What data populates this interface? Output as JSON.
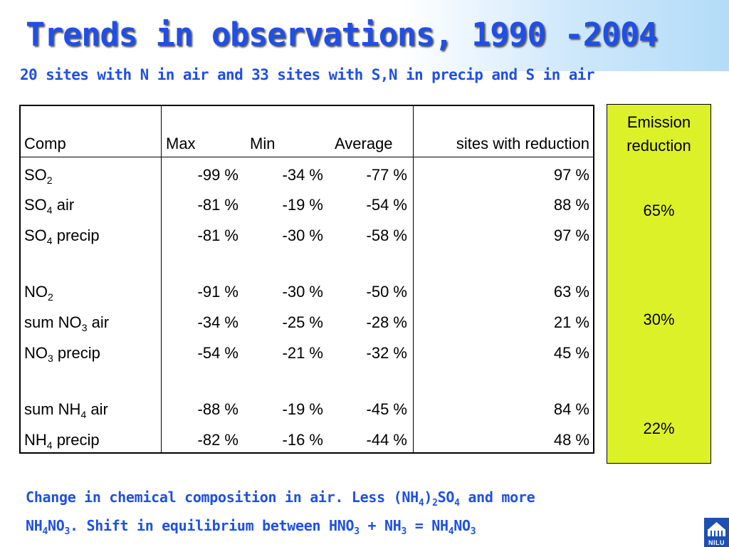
{
  "title": "Trends in observations, 1990 -2004",
  "subtitle": "20 sites with N in air and 33 sites with S,N in precip and S in air",
  "table": {
    "headers": {
      "comp": "Comp",
      "max": "Max",
      "min": "Min",
      "average": "Average",
      "sites": "sites with reduction"
    },
    "rows": [
      {
        "pre": "SO",
        "sub": "2",
        "post": "",
        "max": "-99 %",
        "min": "-34 %",
        "avg": "-77 %",
        "sites": "97 %"
      },
      {
        "pre": "SO",
        "sub": "4",
        "post": " air",
        "max": "-81 %",
        "min": "-19 %",
        "avg": "-54 %",
        "sites": "88 %"
      },
      {
        "pre": "SO",
        "sub": "4",
        "post": " precip",
        "max": "-81 %",
        "min": "-30 %",
        "avg": "-58 %",
        "sites": "97 %"
      },
      {
        "pre": "NO",
        "sub": "2",
        "post": "",
        "max": "-91 %",
        "min": "-30 %",
        "avg": "-50 %",
        "sites": "63 %"
      },
      {
        "pre": "sum NO",
        "sub": "3",
        "post": " air",
        "max": "-34 %",
        "min": "-25 %",
        "avg": "-28 %",
        "sites": "21 %"
      },
      {
        "pre": "NO",
        "sub": "3",
        "post": " precip",
        "max": "-54 %",
        "min": "-21 %",
        "avg": "-32 %",
        "sites": "45 %"
      },
      {
        "pre": "sum NH",
        "sub": "4",
        "post": " air",
        "max": "-88 %",
        "min": "-19 %",
        "avg": "-45 %",
        "sites": "84 %"
      },
      {
        "pre": "NH",
        "sub": "4",
        "post": " precip",
        "max": "-82 %",
        "min": "-16 %",
        "avg": "-44 %",
        "sites": "48 %"
      }
    ]
  },
  "emission": {
    "header_line1": "Emission",
    "header_line2": "reduction",
    "values": [
      "65%",
      "30%",
      "22%"
    ]
  },
  "note": {
    "l1_a": "Change in chemical composition in air. Less (NH",
    "l1_s1": "4",
    "l1_b": ")",
    "l1_s2": "2",
    "l1_c": "SO",
    "l1_s3": "4",
    "l1_d": " and more",
    "l2_a": "NH",
    "l2_s1": "4",
    "l2_b": "NO",
    "l2_s2": "3",
    "l2_c": ". Shift in equilibrium between HNO",
    "l2_s3": "3",
    "l2_d": " + NH",
    "l2_s4": "3",
    "l2_e": " = NH",
    "l2_s5": "4",
    "l2_f": "NO",
    "l2_s6": "3"
  },
  "logo_text": "NILU",
  "colors": {
    "title_blue": "#1f4fe6",
    "emission_bg": "#ddf129",
    "logo_blue": "#1d4fb5"
  }
}
